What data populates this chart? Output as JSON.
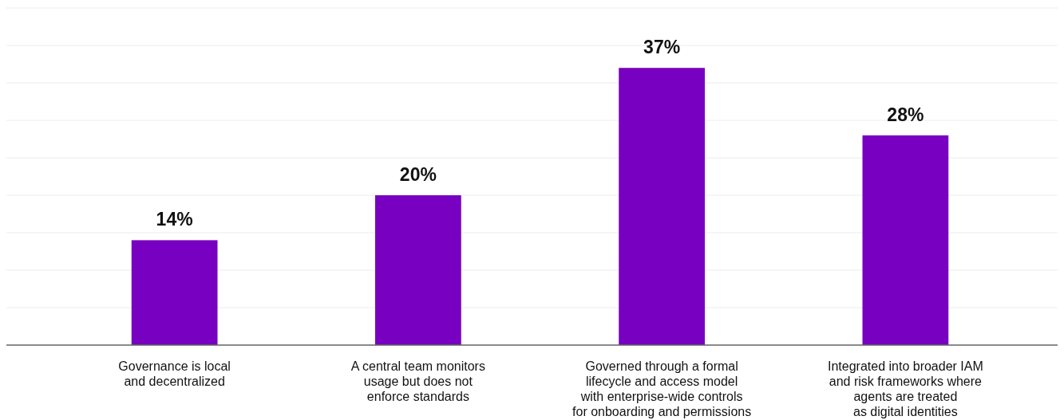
{
  "chart_data": {
    "type": "bar",
    "categories": [
      "Governance is local\nand decentralized",
      "A central team monitors\nusage but does not\nenforce standards",
      "Governed through a formal\nlifecycle and access model\nwith enterprise-wide controls\nfor onboarding and permissions",
      "Integrated into broader IAM\nand risk frameworks where\nagents are treated\nas digital identities"
    ],
    "values": [
      14,
      20,
      37,
      28
    ],
    "color": "#7800c0",
    "data_labels": true,
    "value_labels": [
      "14%",
      "20%",
      "37%",
      "28%"
    ],
    "relative": false,
    "ylim": [
      0,
      45
    ],
    "yticks": [
      {
        "value": 0,
        "label": null
      },
      {
        "value": 5,
        "label": null
      },
      {
        "value": 10,
        "label": null
      },
      {
        "value": 15,
        "label": null
      },
      {
        "value": 20,
        "label": null
      },
      {
        "value": 25,
        "label": null
      },
      {
        "value": 30,
        "label": null
      },
      {
        "value": 35,
        "label": null
      },
      {
        "value": 40,
        "label": null
      },
      {
        "value": 45,
        "label": null
      }
    ],
    "grid": "y",
    "tick_labels": "x"
  }
}
